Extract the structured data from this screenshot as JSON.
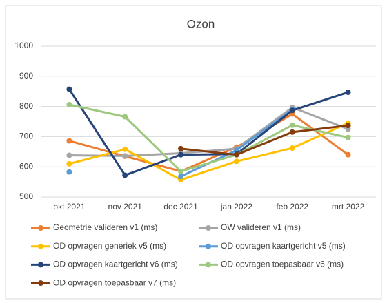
{
  "chart_data": {
    "type": "line",
    "title": "Ozon",
    "categories": [
      "okt 2021",
      "nov 2021",
      "dec 2021",
      "jan 2022",
      "feb 2022",
      "mrt 2022"
    ],
    "series": [
      {
        "name": "Geometrie valideren v1 (ms)",
        "color": "#ed7d31",
        "values": [
          686,
          635,
          585,
          665,
          775,
          640
        ]
      },
      {
        "name": "OW valideren v1 (ms)",
        "color": "#a5a5a5",
        "values": [
          638,
          636,
          645,
          660,
          797,
          725
        ]
      },
      {
        "name": "OD opvragen generiek v5 (ms)",
        "color": "#ffc000",
        "values": [
          610,
          658,
          557,
          618,
          662,
          745
        ]
      },
      {
        "name": "OD opvragen kaartgericht v5 (ms)",
        "color": "#5b9bd5",
        "values": [
          583,
          null,
          568,
          655,
          790,
          null
        ]
      },
      {
        "name": "OD opvragen kaartgericht v6 (ms)",
        "color": "#264478",
        "values": [
          857,
          572,
          640,
          642,
          787,
          847
        ]
      },
      {
        "name": "OD opvragen toepasbaar v6 (ms)",
        "color": "#9dc87f",
        "values": [
          806,
          766,
          585,
          640,
          738,
          697
        ]
      },
      {
        "name": "OD opvragen toepasbaar v7 (ms)",
        "color": "#843c0c",
        "values": [
          null,
          null,
          660,
          640,
          715,
          737
        ]
      }
    ],
    "ylim": [
      500,
      1000
    ],
    "yticks": [
      500,
      600,
      700,
      800,
      900,
      1000
    ],
    "grid": true,
    "legend": "bottom"
  }
}
